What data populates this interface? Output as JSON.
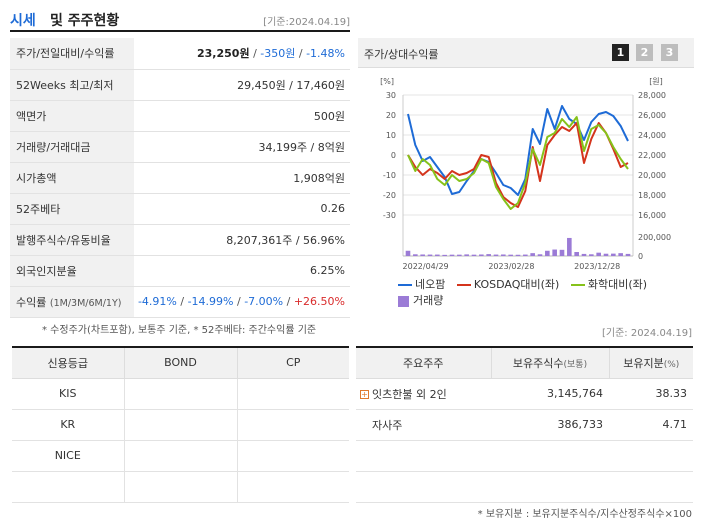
{
  "header": {
    "title1": "시세",
    "title2": "및 주주현황",
    "date": "[기준:2024.04.19]"
  },
  "info": {
    "rows": [
      {
        "label": "주가/전일대비/수익률",
        "price": "23,250원",
        "change": "-350원",
        "pct": "-1.48%"
      },
      {
        "label": "52Weeks 최고/최저",
        "value": "29,450원 / 17,460원"
      },
      {
        "label": "액면가",
        "value": "500원"
      },
      {
        "label": "거래량/거래대금",
        "value": "34,199주 / 8억원"
      },
      {
        "label": "시가총액",
        "value": "1,908억원"
      },
      {
        "label": "52주베타",
        "value": "0.26"
      },
      {
        "label": "발행주식수/유동비율",
        "value": "8,207,361주 / 56.96%"
      },
      {
        "label": "외국인지분율",
        "value": "6.25%"
      },
      {
        "label": "수익률",
        "label_sub": "(1M/3M/6M/1Y)",
        "r1": "-4.91%",
        "r2": "-14.99%",
        "r3": "-7.00%",
        "r4": "+26.50%"
      }
    ],
    "note": "* 수정주가(차트포함), 보통주 기준, * 52주베타: 주간수익률 기준"
  },
  "chart_panel": {
    "title": "주가/상대수익률",
    "pages": [
      "1",
      "2",
      "3"
    ],
    "active_page": "1",
    "legend": {
      "s1": "네오팜",
      "s2": "KOSDAQ대비(좌)",
      "s3": "화학대비(좌)",
      "s4": "거래량"
    }
  },
  "chart_data": {
    "type": "line",
    "left_unit": "[%]",
    "right_unit": "[원]",
    "left_ticks": [
      "30",
      "20",
      "10",
      "0",
      "-10",
      "-20",
      "-30"
    ],
    "right_ticks": [
      "28,000",
      "26,000",
      "24,000",
      "22,000",
      "20,000",
      "18,000",
      "16,000"
    ],
    "vol_ticks": [
      "200,000",
      "0"
    ],
    "x_labels": [
      "2022/04/29",
      "2023/02/28",
      "2023/12/28"
    ],
    "ylim_left": [
      -30,
      30
    ],
    "ylim_right": [
      16000,
      28000
    ],
    "series": [
      {
        "name": "네오팜",
        "color": "#1e6bd6",
        "axis": "right",
        "values": [
          26100,
          23000,
          21400,
          21800,
          20800,
          19800,
          18100,
          18300,
          19400,
          20400,
          21600,
          21300,
          20200,
          19000,
          18700,
          18000,
          19600,
          24600,
          23100,
          26600,
          24600,
          26900,
          25600,
          25100,
          23500,
          25300,
          26100,
          26300,
          25900,
          24900,
          23400
        ]
      },
      {
        "name": "KOSDAQ대비(좌)",
        "color": "#d4341c",
        "axis": "left",
        "values": [
          0,
          -6,
          -10,
          -7,
          -9,
          -12,
          -8,
          -10,
          -9,
          -7,
          0,
          -1,
          -14,
          -21,
          -24,
          -26,
          -18,
          4,
          -13,
          5,
          10,
          14,
          12,
          16,
          -4,
          8,
          16,
          11,
          3,
          -6,
          -4
        ]
      },
      {
        "name": "화학대비(좌)",
        "color": "#86c21a",
        "axis": "left",
        "values": [
          0,
          -8,
          -2,
          -5,
          -12,
          -15,
          -10,
          -13,
          -12,
          -9,
          -2,
          -4,
          -16,
          -22,
          -27,
          -24,
          -14,
          3,
          -5,
          9,
          11,
          18,
          14,
          19,
          2,
          13,
          15,
          11,
          4,
          -2,
          -7
        ]
      },
      {
        "name": "거래량",
        "color": "#9b7bd6",
        "axis": "vol",
        "values": [
          55000,
          18000,
          16000,
          15000,
          15000,
          12000,
          14000,
          14000,
          17000,
          14000,
          16000,
          20000,
          15000,
          16000,
          14000,
          13000,
          15000,
          30000,
          18000,
          55000,
          68000,
          65000,
          190000,
          42000,
          22000,
          18000,
          35000,
          24000,
          25000,
          30000,
          22000
        ]
      }
    ]
  },
  "credit": {
    "headers": [
      "신용등급",
      "BOND",
      "CP"
    ],
    "rows": [
      {
        "agency": "KIS",
        "bond": "",
        "cp": ""
      },
      {
        "agency": "KR",
        "bond": "",
        "cp": ""
      },
      {
        "agency": "NICE",
        "bond": "",
        "cp": ""
      },
      {
        "agency": "",
        "bond": "",
        "cp": ""
      }
    ]
  },
  "holders": {
    "date": "[기준: 2024.04.19]",
    "headers": {
      "h1": "주요주주",
      "h2": "보유주식수",
      "h2_unit": "(보통)",
      "h3": "보유지분",
      "h3_unit": "(%)"
    },
    "rows": [
      {
        "name": "잇츠한불 외 2인",
        "shares": "3,145,764",
        "pct": "38.33"
      },
      {
        "name": "자사주",
        "shares": "386,733",
        "pct": "4.71"
      },
      {
        "name": "",
        "shares": "",
        "pct": ""
      },
      {
        "name": "",
        "shares": "",
        "pct": ""
      }
    ],
    "note": "* 보유지분 : 보유지분주식수/지수산정주식수×100"
  }
}
